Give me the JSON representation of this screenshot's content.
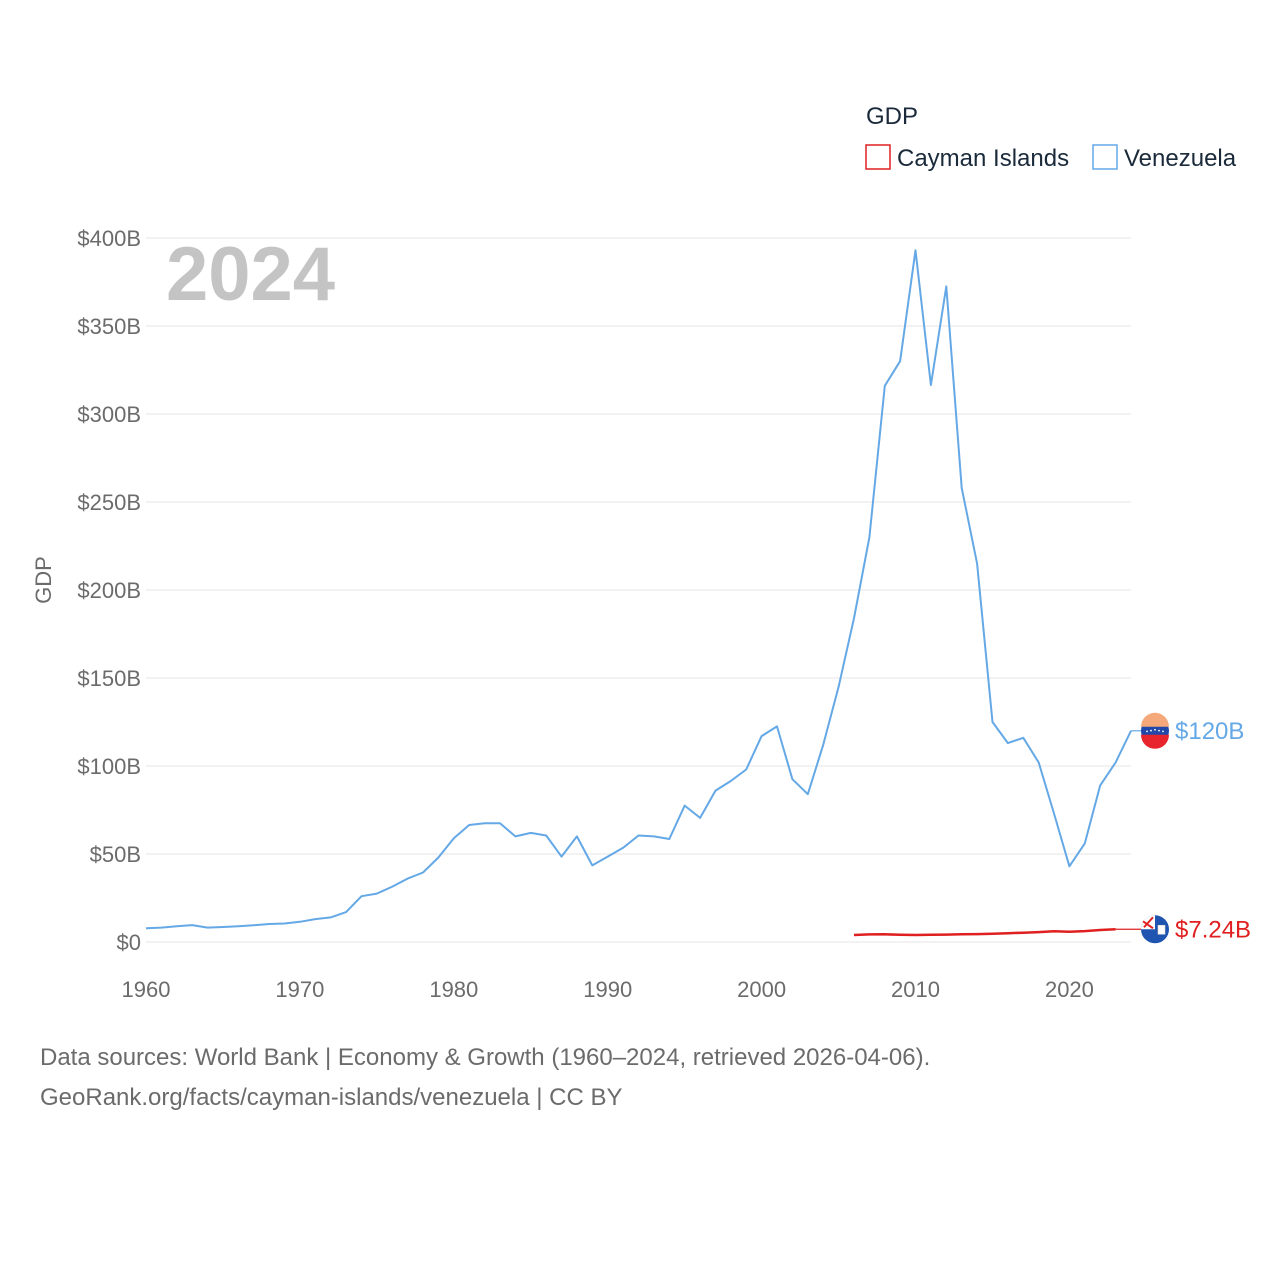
{
  "chart_data": {
    "type": "line",
    "title": "GDP",
    "ylabel": "GDP",
    "xlabel": "",
    "year_watermark": "2024",
    "xlim": [
      1960,
      2024
    ],
    "ylim": [
      0,
      400
    ],
    "x_ticks": [
      1960,
      1970,
      1980,
      1990,
      2000,
      2010,
      2020
    ],
    "x_tick_labels": [
      "1960",
      "1970",
      "1980",
      "1990",
      "2000",
      "2010",
      "2020"
    ],
    "y_ticks": [
      0,
      50,
      100,
      150,
      200,
      250,
      300,
      350,
      400
    ],
    "y_tick_labels": [
      "$0",
      "$50B",
      "$100B",
      "$150B",
      "$200B",
      "$250B",
      "$300B",
      "$350B",
      "$400B"
    ],
    "legend": [
      "Cayman Islands",
      "Venezuela"
    ],
    "series": [
      {
        "name": "Cayman Islands",
        "color": "#e02020",
        "end_label": "$7.24B",
        "x": [
          2006,
          2007,
          2008,
          2009,
          2010,
          2011,
          2012,
          2013,
          2014,
          2015,
          2016,
          2017,
          2018,
          2019,
          2020,
          2021,
          2022,
          2023
        ],
        "values": [
          4.0,
          4.3,
          4.4,
          4.1,
          4.0,
          4.1,
          4.2,
          4.4,
          4.5,
          4.7,
          5.0,
          5.3,
          5.6,
          6.1,
          5.8,
          6.2,
          6.8,
          7.24
        ]
      },
      {
        "name": "Venezuela",
        "color": "#64a8e6",
        "end_label": "$120B",
        "x": [
          1960,
          1961,
          1962,
          1963,
          1964,
          1965,
          1966,
          1967,
          1968,
          1969,
          1970,
          1971,
          1972,
          1973,
          1974,
          1975,
          1976,
          1977,
          1978,
          1979,
          1980,
          1981,
          1982,
          1983,
          1984,
          1985,
          1986,
          1987,
          1988,
          1989,
          1990,
          1991,
          1992,
          1993,
          1994,
          1995,
          1996,
          1997,
          1998,
          1999,
          2000,
          2001,
          2002,
          2003,
          2004,
          2005,
          2006,
          2007,
          2008,
          2009,
          2010,
          2011,
          2012,
          2013,
          2014,
          2015,
          2016,
          2017,
          2018,
          2019,
          2020,
          2021,
          2022,
          2023,
          2024
        ],
        "values": [
          7.8,
          8.2,
          8.9,
          9.6,
          8.2,
          8.5,
          8.9,
          9.5,
          10.2,
          10.5,
          11.5,
          13.0,
          14.0,
          17.0,
          26.0,
          27.5,
          31.5,
          36.0,
          39.5,
          48.0,
          59.0,
          66.5,
          67.5,
          67.5,
          60.0,
          62.0,
          60.5,
          48.5,
          60.0,
          43.5,
          48.5,
          53.5,
          60.5,
          60.0,
          58.5,
          77.5,
          70.5,
          86.0,
          91.5,
          98.0,
          117.0,
          122.5,
          92.5,
          84.0,
          112.0,
          145.0,
          184.0,
          230.0,
          316.0,
          330.0,
          393.0,
          316.5,
          372.5,
          258.0,
          215.0,
          125.0,
          113.0,
          116.0,
          102.0,
          73.0,
          43.0,
          56.0,
          89.0,
          102.0,
          120.0
        ]
      }
    ]
  },
  "legend_title": "GDP",
  "footer": {
    "line1": "Data sources: World Bank | Economy & Growth (1960–2024, retrieved 2026-04-06).",
    "line2": "GeoRank.org/facts/cayman-islands/venezuela | CC BY"
  }
}
